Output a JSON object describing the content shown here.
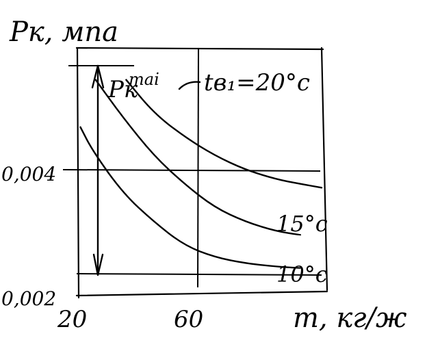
{
  "chart_data": {
    "type": "line",
    "title": "",
    "ylabel": "Pк, мпа",
    "xlabel": "m, кг/ж",
    "x_ticks": [
      "20",
      "60"
    ],
    "y_ticks": [
      "0,004",
      "0,002"
    ],
    "xlim": [
      20,
      100
    ],
    "ylim": [
      0.002,
      0.0064
    ],
    "grid": true,
    "annotations": {
      "axis_marker": "Pк",
      "marker_superscript": "таі",
      "temp_label": "tв₁=20°c"
    },
    "series": [
      {
        "name": "20°c",
        "x": [
          36,
          45,
          55,
          65,
          75,
          85,
          93,
          100
        ],
        "y": [
          0.0061,
          0.0054,
          0.0049,
          0.0045,
          0.0042,
          0.004,
          0.0039,
          0.00382
        ]
      },
      {
        "name": "15°c",
        "x": [
          26,
          35,
          45,
          55,
          65,
          75,
          85,
          93
        ],
        "y": [
          0.0061,
          0.0053,
          0.0045,
          0.0039,
          0.0034,
          0.0031,
          0.0029,
          0.00282
        ]
      },
      {
        "name": "10°c",
        "x": [
          21,
          25,
          35,
          45,
          55,
          65,
          75,
          85,
          93
        ],
        "y": [
          0.0051,
          0.0046,
          0.0037,
          0.0031,
          0.0026,
          0.00235,
          0.00222,
          0.00215,
          0.00212
        ]
      }
    ],
    "series_labels": [
      "15°c",
      "10°c"
    ]
  }
}
